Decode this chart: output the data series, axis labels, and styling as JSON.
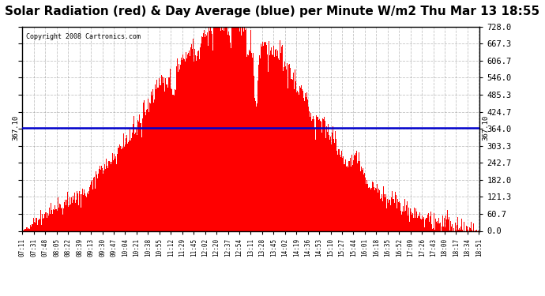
{
  "title": "Solar Radiation (red) & Day Average (blue) per Minute W/m2 Thu Mar 13 18:55",
  "copyright": "Copyright 2008 Cartronics.com",
  "avg_value": 367.1,
  "avg_label": "367.10",
  "y_ticks": [
    0.0,
    60.7,
    121.3,
    182.0,
    242.7,
    303.3,
    364.0,
    424.7,
    485.3,
    546.0,
    606.7,
    667.3,
    728.0
  ],
  "ylim": [
    0.0,
    728.0
  ],
  "x_tick_labels": [
    "07:11",
    "07:31",
    "07:48",
    "08:05",
    "08:22",
    "08:39",
    "09:13",
    "09:30",
    "09:47",
    "10:04",
    "10:21",
    "10:38",
    "10:55",
    "11:12",
    "11:29",
    "11:45",
    "12:02",
    "12:20",
    "12:37",
    "12:54",
    "13:11",
    "13:28",
    "13:45",
    "14:02",
    "14:19",
    "14:36",
    "14:53",
    "15:10",
    "15:27",
    "15:44",
    "16:01",
    "16:18",
    "16:35",
    "16:52",
    "17:09",
    "17:26",
    "17:43",
    "18:00",
    "18:17",
    "18:34",
    "18:51"
  ],
  "bar_color": "#ff0000",
  "avg_line_color": "#0000cc",
  "title_fontsize": 11,
  "background_color": "#ffffff",
  "grid_color": "#888888",
  "n_points": 700,
  "peak_hour": 12.5,
  "start_hour": 7.183,
  "end_hour": 18.85,
  "peak_value": 728.0,
  "sigma": 0.18
}
